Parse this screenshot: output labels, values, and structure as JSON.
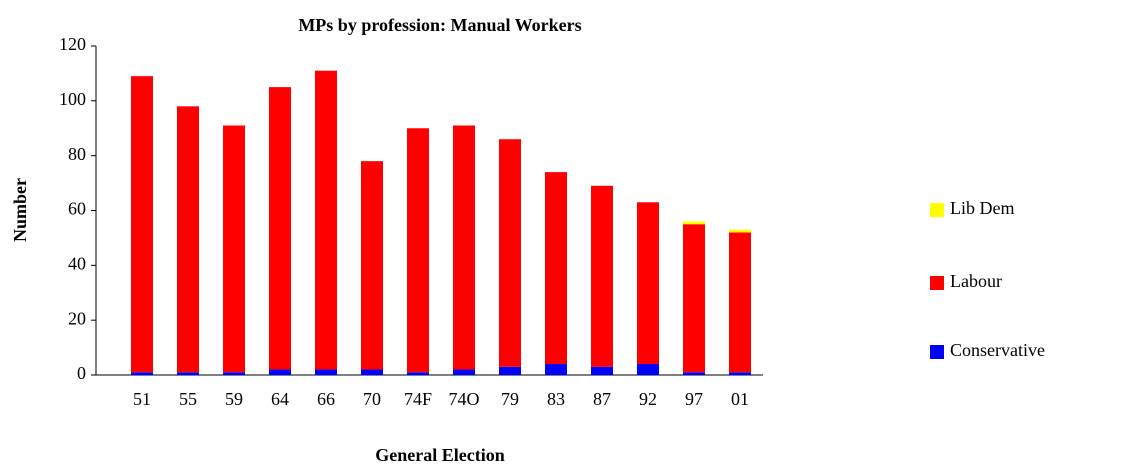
{
  "chart_data": {
    "type": "stacked_bar",
    "title": "MPs by profession: Manual Workers",
    "x_label": "General Election",
    "y_label": "Number",
    "categories": [
      "51",
      "55",
      "59",
      "64",
      "66",
      "70",
      "74F",
      "74O",
      "79",
      "83",
      "87",
      "92",
      "97",
      "01"
    ],
    "series": [
      {
        "name": "Conservative",
        "color": "#0000ff",
        "values": [
          1,
          1,
          1,
          2,
          2,
          2,
          1,
          2,
          3,
          4,
          3,
          4,
          1,
          1
        ]
      },
      {
        "name": "Labour",
        "color": "#ff0000",
        "values": [
          108,
          97,
          90,
          103,
          109,
          76,
          89,
          89,
          83,
          70,
          66,
          59,
          54,
          51
        ]
      },
      {
        "name": "Lib Dem",
        "color": "#ffff00",
        "values": [
          0,
          0,
          0,
          0,
          0,
          0,
          0,
          0,
          0,
          0,
          0,
          0,
          1,
          1
        ]
      }
    ],
    "ylim": [
      0,
      120
    ],
    "yticks": [
      0,
      20,
      40,
      60,
      80,
      100,
      120
    ],
    "legend": "right"
  }
}
